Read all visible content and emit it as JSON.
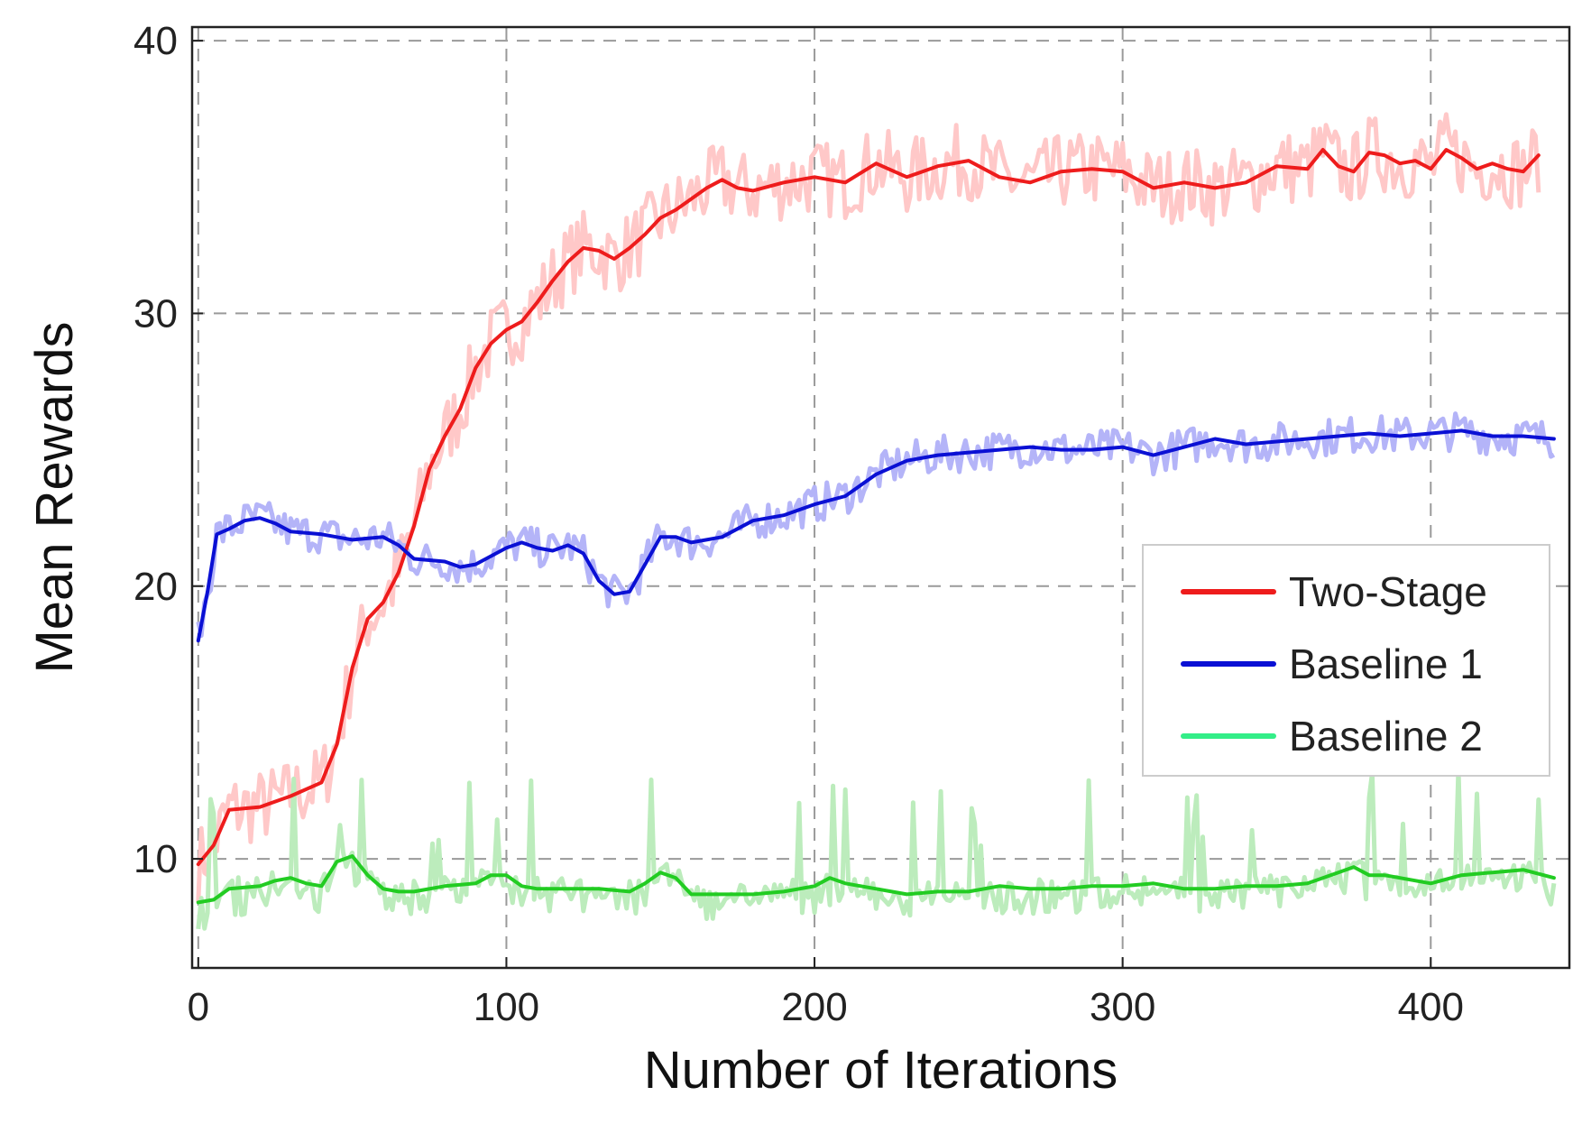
{
  "chart_data": {
    "type": "line",
    "xlabel": "Number of Iterations",
    "ylabel": "Mean Rewards",
    "xlim": [
      -2,
      445
    ],
    "ylim": [
      6,
      40.5
    ],
    "xticks": [
      0,
      100,
      200,
      300,
      400
    ],
    "yticks": [
      10,
      20,
      30,
      40
    ],
    "xtick_labels": [
      "0",
      "100",
      "200",
      "300",
      "400"
    ],
    "ytick_labels": [
      "10",
      "20",
      "30",
      "40"
    ],
    "grid": true,
    "legend_position": "center-right",
    "series": [
      {
        "name": "Two-Stage",
        "color": "#ee1c1c",
        "raw_color": "#ffc8c8",
        "x": [
          0,
          5,
          10,
          20,
          30,
          40,
          45,
          50,
          55,
          60,
          65,
          70,
          75,
          80,
          85,
          90,
          95,
          100,
          105,
          110,
          115,
          120,
          125,
          130,
          135,
          140,
          145,
          150,
          155,
          160,
          165,
          170,
          175,
          180,
          190,
          200,
          210,
          220,
          230,
          240,
          250,
          260,
          270,
          280,
          290,
          300,
          310,
          320,
          330,
          340,
          350,
          360,
          365,
          370,
          375,
          380,
          385,
          390,
          395,
          400,
          405,
          410,
          415,
          420,
          425,
          430,
          435
        ],
        "values": [
          9.8,
          10.5,
          11.8,
          11.9,
          12.3,
          12.8,
          14.2,
          17.0,
          18.8,
          19.4,
          20.5,
          22.2,
          24.3,
          25.5,
          26.5,
          28.0,
          28.9,
          29.4,
          29.7,
          30.4,
          31.2,
          31.9,
          32.4,
          32.3,
          32.0,
          32.4,
          32.9,
          33.5,
          33.8,
          34.2,
          34.6,
          34.9,
          34.6,
          34.5,
          34.8,
          35.0,
          34.8,
          35.5,
          35.0,
          35.4,
          35.6,
          35.0,
          34.8,
          35.2,
          35.3,
          35.2,
          34.6,
          34.8,
          34.6,
          34.8,
          35.4,
          35.3,
          36.0,
          35.4,
          35.2,
          35.9,
          35.8,
          35.5,
          35.6,
          35.3,
          36.0,
          35.7,
          35.3,
          35.5,
          35.3,
          35.2,
          35.8
        ]
      },
      {
        "name": "Baseline 1",
        "color": "#0a10d4",
        "raw_color": "#b4b4f8",
        "x": [
          0,
          3,
          6,
          10,
          15,
          20,
          25,
          30,
          40,
          50,
          60,
          65,
          70,
          80,
          85,
          90,
          100,
          105,
          110,
          115,
          120,
          125,
          130,
          135,
          140,
          145,
          150,
          155,
          160,
          170,
          180,
          190,
          200,
          210,
          220,
          230,
          240,
          250,
          260,
          270,
          280,
          290,
          300,
          310,
          320,
          330,
          340,
          350,
          360,
          370,
          380,
          390,
          400,
          410,
          420,
          430,
          440
        ],
        "values": [
          18.0,
          19.8,
          21.9,
          22.1,
          22.4,
          22.5,
          22.3,
          22.0,
          21.9,
          21.7,
          21.8,
          21.5,
          21.0,
          20.9,
          20.7,
          20.8,
          21.4,
          21.6,
          21.4,
          21.3,
          21.5,
          21.2,
          20.2,
          19.7,
          19.8,
          20.8,
          21.8,
          21.8,
          21.6,
          21.8,
          22.4,
          22.6,
          23.0,
          23.3,
          24.1,
          24.6,
          24.8,
          24.9,
          25.0,
          25.1,
          25.0,
          25.0,
          25.1,
          24.8,
          25.1,
          25.4,
          25.2,
          25.3,
          25.4,
          25.5,
          25.6,
          25.5,
          25.6,
          25.7,
          25.5,
          25.5,
          25.4
        ]
      },
      {
        "name": "Baseline 2",
        "color": "#22cc22",
        "raw_color": "#bcecbc",
        "legend_color": "#33ee88",
        "x": [
          0,
          5,
          10,
          20,
          25,
          30,
          35,
          40,
          45,
          50,
          55,
          60,
          65,
          70,
          80,
          90,
          95,
          100,
          105,
          110,
          120,
          130,
          140,
          145,
          150,
          155,
          160,
          170,
          180,
          190,
          200,
          205,
          210,
          215,
          220,
          230,
          240,
          250,
          260,
          270,
          280,
          290,
          300,
          310,
          320,
          330,
          340,
          350,
          360,
          370,
          375,
          380,
          385,
          390,
          400,
          410,
          420,
          430,
          440
        ],
        "values": [
          8.4,
          8.5,
          8.9,
          9.0,
          9.2,
          9.3,
          9.1,
          9.0,
          9.9,
          10.1,
          9.4,
          8.9,
          8.8,
          8.8,
          9.0,
          9.1,
          9.4,
          9.4,
          9.0,
          8.9,
          8.9,
          8.9,
          8.8,
          9.1,
          9.5,
          9.3,
          8.7,
          8.7,
          8.7,
          8.8,
          9.0,
          9.3,
          9.1,
          9.0,
          8.9,
          8.7,
          8.8,
          8.8,
          9.0,
          8.9,
          8.9,
          9.0,
          9.0,
          9.1,
          8.9,
          8.9,
          9.0,
          9.0,
          9.1,
          9.5,
          9.7,
          9.4,
          9.4,
          9.3,
          9.1,
          9.4,
          9.5,
          9.6,
          9.3
        ]
      }
    ]
  }
}
